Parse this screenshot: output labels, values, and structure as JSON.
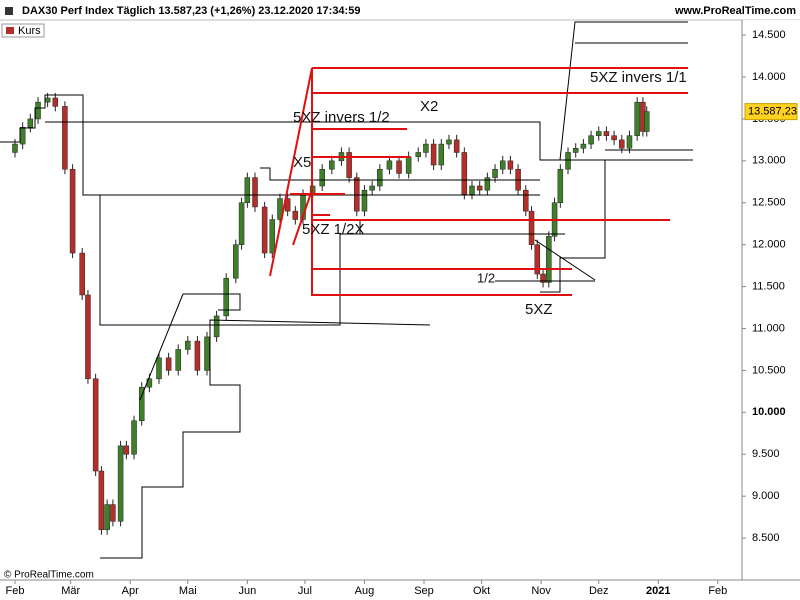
{
  "chart_data": {
    "type": "candlestick",
    "title": "DAX30 Perf Index Täglich 13.587,23 (+1,26%) 23.12.2020 17:34:59",
    "site": "www.ProRealTime.com",
    "source": "© ProRealTime.com",
    "series_name": "Kurs",
    "last_label": "13.587,23",
    "up_color": "#3f7f2a",
    "down_color": "#b3302a",
    "grid": false,
    "x": [
      0,
      4,
      8,
      12,
      17,
      21,
      26,
      30,
      35,
      38,
      42,
      45,
      48,
      51,
      55,
      58,
      62,
      66,
      70,
      75,
      80,
      85,
      90,
      95,
      100,
      105,
      110,
      115,
      118,
      121,
      125,
      130,
      134,
      138,
      142,
      146,
      150,
      155,
      160,
      165,
      170,
      174,
      178,
      182,
      186,
      190,
      195,
      200,
      205,
      210,
      214,
      218,
      222,
      226,
      230,
      234,
      238,
      242,
      246,
      250,
      254,
      258,
      262,
      266,
      269,
      272,
      275,
      278,
      281,
      284,
      288,
      292,
      296,
      300,
      304,
      308,
      312,
      316,
      320,
      324,
      327,
      329
    ],
    "open": [
      13100,
      13200,
      13400,
      13500,
      13700,
      13750,
      13650,
      12900,
      11900,
      11400,
      10400,
      9300,
      8600,
      8900,
      8700,
      9600,
      9500,
      9900,
      10300,
      10400,
      10650,
      10500,
      10750,
      10850,
      10500,
      10900,
      11150,
      11600,
      12000,
      12500,
      12800,
      12450,
      11900,
      12300,
      12550,
      12400,
      12300,
      12600,
      12700,
      12900,
      13000,
      13100,
      12800,
      12400,
      12650,
      12700,
      12900,
      13000,
      12850,
      13050,
      13100,
      13200,
      12950,
      13200,
      13250,
      13100,
      12600,
      12700,
      12650,
      12800,
      12900,
      13000,
      12900,
      12650,
      12400,
      12000,
      11650,
      11550,
      12100,
      12500,
      12900,
      13100,
      13150,
      13200,
      13300,
      13350,
      13300,
      13250,
      13150,
      13300,
      13700,
      13350
    ],
    "high": [
      13260,
      13460,
      13560,
      13760,
      13810,
      13810,
      13710,
      12960,
      11960,
      11460,
      10460,
      9360,
      8960,
      8960,
      9660,
      9660,
      9960,
      10360,
      10460,
      10710,
      10710,
      10810,
      10910,
      10910,
      10960,
      11210,
      11660,
      12060,
      12560,
      12860,
      12860,
      12510,
      12360,
      12610,
      12610,
      12460,
      12660,
      12760,
      12960,
      13060,
      13160,
      13160,
      12860,
      12710,
      12760,
      12960,
      13060,
      13060,
      13110,
      13160,
      13260,
      13260,
      13260,
      13310,
      13310,
      13160,
      12760,
      12760,
      12860,
      12960,
      13060,
      13060,
      12960,
      12710,
      12460,
      12060,
      11710,
      12160,
      12560,
      12960,
      13160,
      13210,
      13260,
      13360,
      13410,
      13410,
      13360,
      13310,
      13360,
      13760,
      13760,
      13650
    ],
    "low": [
      13040,
      13140,
      13340,
      13440,
      13640,
      13590,
      12840,
      11840,
      11340,
      10340,
      9240,
      8540,
      8540,
      8640,
      8640,
      9440,
      9440,
      9840,
      10240,
      10340,
      10440,
      10440,
      10690,
      10440,
      10440,
      10840,
      11090,
      11540,
      11940,
      12440,
      12390,
      11840,
      11840,
      12240,
      12340,
      12240,
      12240,
      12540,
      12640,
      12840,
      12940,
      12740,
      12340,
      12340,
      12590,
      12640,
      12840,
      12790,
      12790,
      12990,
      13040,
      12890,
      12890,
      13140,
      13040,
      12540,
      12540,
      12590,
      12590,
      12740,
      12840,
      12840,
      12590,
      12340,
      11940,
      11590,
      11490,
      11490,
      12040,
      12440,
      12840,
      13040,
      13090,
      13140,
      13240,
      13240,
      13190,
      13090,
      13090,
      13240,
      13290,
      13290
    ],
    "close": [
      13200,
      13400,
      13500,
      13700,
      13750,
      13650,
      12900,
      11900,
      11400,
      10400,
      9300,
      8600,
      8900,
      8700,
      9600,
      9500,
      9900,
      10300,
      10400,
      10650,
      10500,
      10750,
      10850,
      10500,
      10900,
      11150,
      11600,
      12000,
      12500,
      12800,
      12450,
      11900,
      12300,
      12550,
      12400,
      12300,
      12600,
      12700,
      12900,
      13000,
      13100,
      12800,
      12400,
      12650,
      12700,
      12900,
      13000,
      12850,
      13050,
      13100,
      13200,
      12950,
      13200,
      13250,
      13100,
      12600,
      12700,
      12650,
      12800,
      12900,
      13000,
      12900,
      12650,
      12400,
      12000,
      11650,
      11550,
      12100,
      12500,
      12900,
      13100,
      13150,
      13200,
      13300,
      13350,
      13300,
      13250,
      13150,
      13300,
      13700,
      13350,
      13587.23
    ],
    "xlim": [
      -7.8,
      378.6
    ],
    "ylim": [
      8000,
      14680
    ],
    "xticks": [
      {
        "value": 0,
        "label": "Feb"
      },
      {
        "value": 29,
        "label": "Mär"
      },
      {
        "value": 60,
        "label": "Apr"
      },
      {
        "value": 90,
        "label": "Mai"
      },
      {
        "value": 121,
        "label": "Jun"
      },
      {
        "value": 151,
        "label": "Jul"
      },
      {
        "value": 182,
        "label": "Aug"
      },
      {
        "value": 213,
        "label": "Sep"
      },
      {
        "value": 243,
        "label": "Okt"
      },
      {
        "value": 274,
        "label": "Nov"
      },
      {
        "value": 304,
        "label": "Dez"
      },
      {
        "value": 335,
        "label": "2021"
      },
      {
        "value": 366,
        "label": "Feb"
      }
    ],
    "yticks": [
      {
        "value": 8500,
        "label": "8.500"
      },
      {
        "value": 9000,
        "label": "9.000"
      },
      {
        "value": 9500,
        "label": "9.500"
      },
      {
        "value": 10000,
        "label": "10.000"
      },
      {
        "value": 10500,
        "label": "10.500"
      },
      {
        "value": 11000,
        "label": "11.000"
      },
      {
        "value": 11500,
        "label": "11.500"
      },
      {
        "value": 12000,
        "label": "12.000"
      },
      {
        "value": 12500,
        "label": "12.500"
      },
      {
        "value": 13000,
        "label": "13.000"
      },
      {
        "value": 13500,
        "label": "13.500"
      },
      {
        "value": 14000,
        "label": "14.000"
      },
      {
        "value": 14500,
        "label": "14.500"
      }
    ],
    "annotations": [
      "5XZ invers 1/1",
      "X2",
      "5XZ invers 1/2",
      "X5",
      "5XZ 1/2X",
      "1/2",
      "5XZ"
    ]
  }
}
